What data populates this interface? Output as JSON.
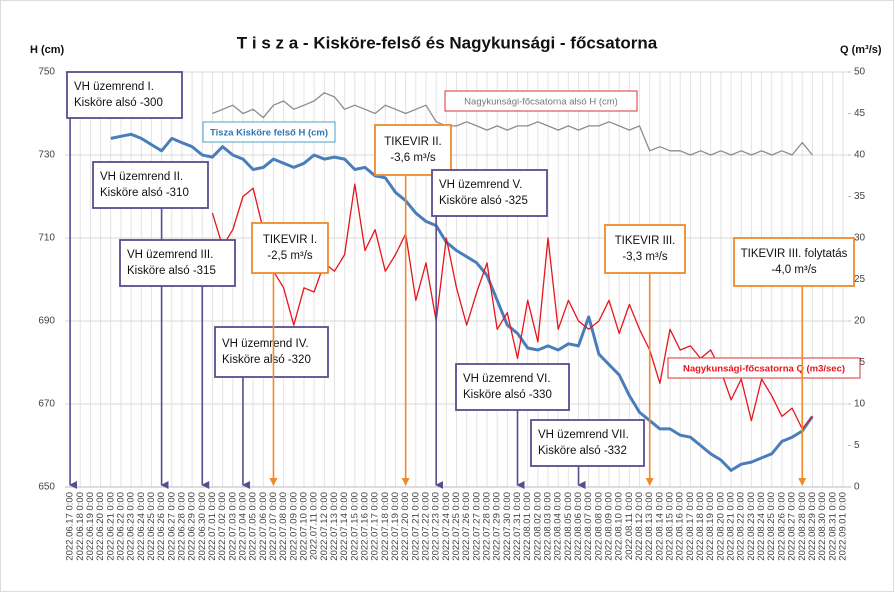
{
  "chart_data": {
    "type": "line",
    "title": "T i s z a  -  Kisköre-felső és Nagykunsági - főcsatorna",
    "y_label": "H (cm)",
    "y2_label": "Q (m³/s)",
    "categories": [
      "2022.06.17 0:00",
      "2022.06.18 0:00",
      "2022.06.19 0:00",
      "2022.06.20 0:00",
      "2022.06.21 0:00",
      "2022.06.22 0:00",
      "2022.06.23 0:00",
      "2022.06.24 0:00",
      "2022.06.25 0:00",
      "2022.06.26 0:00",
      "2022.06.27 0:00",
      "2022.06.28 0:00",
      "2022.06.29 0:00",
      "2022.06.30 0:00",
      "2022.07.01 0:00",
      "2022.07.02 0:00",
      "2022.07.03 0:00",
      "2022.07.04 0:00",
      "2022.07.05 0:00",
      "2022.07.06 0:00",
      "2022.07.07 0:00",
      "2022.07.08 0:00",
      "2022.07.09 0:00",
      "2022.07.10 0:00",
      "2022.07.11 0:00",
      "2022.07.12 0:00",
      "2022.07.13 0:00",
      "2022.07.14 0:00",
      "2022.07.15 0:00",
      "2022.07.16 0:00",
      "2022.07.17 0:00",
      "2022.07.18 0:00",
      "2022.07.19 0:00",
      "2022.07.20 0:00",
      "2022.07.21 0:00",
      "2022.07.22 0:00",
      "2022.07.23 0:00",
      "2022.07.24 0:00",
      "2022.07.25 0:00",
      "2022.07.26 0:00",
      "2022.07.27 0:00",
      "2022.07.28 0:00",
      "2022.07.29 0:00",
      "2022.07.30 0:00",
      "2022.07.31 0:00",
      "2022.08.01 0:00",
      "2022.08.02 0:00",
      "2022.08.03 0:00",
      "2022.08.04 0:00",
      "2022.08.05 0:00",
      "2022.08.06 0:00",
      "2022.08.07 0:00",
      "2022.08.08 0:00",
      "2022.08.09 0:00",
      "2022.08.10 0:00",
      "2022.08.11 0:00",
      "2022.08.12 0:00",
      "2022.08.13 0:00",
      "2022.08.14 0:00",
      "2022.08.15 0:00",
      "2022.08.16 0:00",
      "2022.08.17 0:00",
      "2022.08.18 0:00",
      "2022.08.19 0:00",
      "2022.08.20 0:00",
      "2022.08.21 0:00",
      "2022.08.22 0:00",
      "2022.08.23 0:00",
      "2022.08.24 0:00",
      "2022.08.25 0:00",
      "2022.08.26 0:00",
      "2022.08.27 0:00",
      "2022.08.28 0:00",
      "2022.08.29 0:00",
      "2022.08.30 0:00",
      "2022.08.31 0:00",
      "2022.09.01 0:00"
    ],
    "series": [
      {
        "name": "Tisza Kisköre felső H (cm)",
        "color": "#4a7ebb",
        "axis": "y",
        "values": [
          null,
          null,
          null,
          null,
          734,
          734.5,
          735,
          734,
          732.5,
          731,
          734,
          733,
          732,
          730,
          729.5,
          732,
          730,
          729,
          726.5,
          727,
          729,
          728,
          727,
          728,
          730,
          729,
          729.5,
          729,
          726.5,
          727,
          725,
          724.5,
          721,
          719,
          716,
          714,
          713,
          709,
          707,
          705.5,
          704,
          701,
          695,
          689,
          687,
          683.5,
          683,
          684,
          683,
          684.5,
          684,
          691,
          682,
          679.5,
          677,
          672,
          668,
          666,
          664,
          664,
          662.5,
          662,
          660,
          658,
          656.5,
          654,
          655.5,
          656,
          657,
          658,
          661,
          662,
          663.5,
          667,
          null,
          null,
          null
        ]
      },
      {
        "name": "Nagykunsági-főcsatorna alsó H (cm)",
        "color": "#8c8c8c",
        "axis": "y",
        "values": [
          null,
          null,
          null,
          null,
          null,
          null,
          null,
          null,
          null,
          null,
          null,
          null,
          null,
          null,
          740,
          741,
          742,
          740,
          741,
          739,
          742,
          743,
          741,
          742,
          743,
          745,
          744,
          741,
          742,
          741,
          740,
          742,
          741,
          740,
          741,
          742,
          738,
          737,
          737,
          738,
          737,
          736,
          737,
          736,
          737,
          737,
          738,
          737,
          736,
          737,
          736,
          737,
          737,
          738,
          737,
          736,
          737,
          731,
          732,
          731,
          731,
          730,
          731,
          730,
          731,
          730,
          731,
          730,
          731,
          730,
          731,
          730,
          733,
          730,
          null,
          null,
          null
        ]
      },
      {
        "name": "Nagykunsági-főcsatorna Q (m3/sec)",
        "color": "#e8141c",
        "axis": "y2",
        "values": [
          null,
          null,
          null,
          null,
          null,
          null,
          null,
          null,
          null,
          null,
          null,
          null,
          null,
          null,
          33,
          29,
          31,
          35,
          36,
          31,
          26,
          24,
          19.5,
          24,
          23.5,
          27,
          26,
          28,
          36.5,
          28.5,
          31,
          26,
          28,
          30.5,
          22.5,
          27,
          20,
          30,
          24,
          19.5,
          23.5,
          27,
          19,
          21,
          15.5,
          22.5,
          17.5,
          30,
          19,
          22.5,
          20,
          19,
          20,
          22.5,
          18.5,
          22,
          19,
          16.5,
          12.5,
          19,
          16.5,
          17,
          15.5,
          16.5,
          14,
          10.5,
          13,
          8,
          13,
          11,
          8.5,
          9.5,
          7,
          8.5,
          null,
          null,
          null
        ]
      }
    ],
    "ylim": [
      650,
      750
    ],
    "yticks": [
      650,
      670,
      690,
      710,
      730,
      750
    ],
    "y2lim": [
      0,
      50
    ],
    "y2ticks": [
      0,
      5,
      10,
      15,
      20,
      25,
      30,
      35,
      40,
      45,
      50
    ],
    "grid": true,
    "annotations": [
      {
        "lines": [
          "VH üzemrend I.",
          "Kisköre alsó -300"
        ]
      },
      {
        "lines": [
          "VH üzemrend II.",
          "Kisköre alsó -310"
        ]
      },
      {
        "lines": [
          "VH üzemrend III.",
          "Kisköre alsó -315"
        ]
      },
      {
        "lines": [
          "VH üzemrend IV.",
          "Kisköre alsó -320"
        ]
      },
      {
        "lines": [
          "TIKEVIR I.",
          "-2,5 m³/s"
        ]
      },
      {
        "lines": [
          "TIKEVIR II.",
          "-3,6 m³/s"
        ]
      },
      {
        "lines": [
          "VH üzemrend V.",
          "Kisköre alsó -325"
        ]
      },
      {
        "lines": [
          "VH üzemrend VI.",
          "Kisköre alsó -330"
        ]
      },
      {
        "lines": [
          "VH üzemrend VII.",
          "Kisköre alsó -332"
        ]
      },
      {
        "lines": [
          "TIKEVIR III.",
          "-3,3 m³/s"
        ]
      },
      {
        "lines": [
          "TIKEVIR III. folytatás",
          "-4,0 m³/s"
        ]
      }
    ]
  }
}
